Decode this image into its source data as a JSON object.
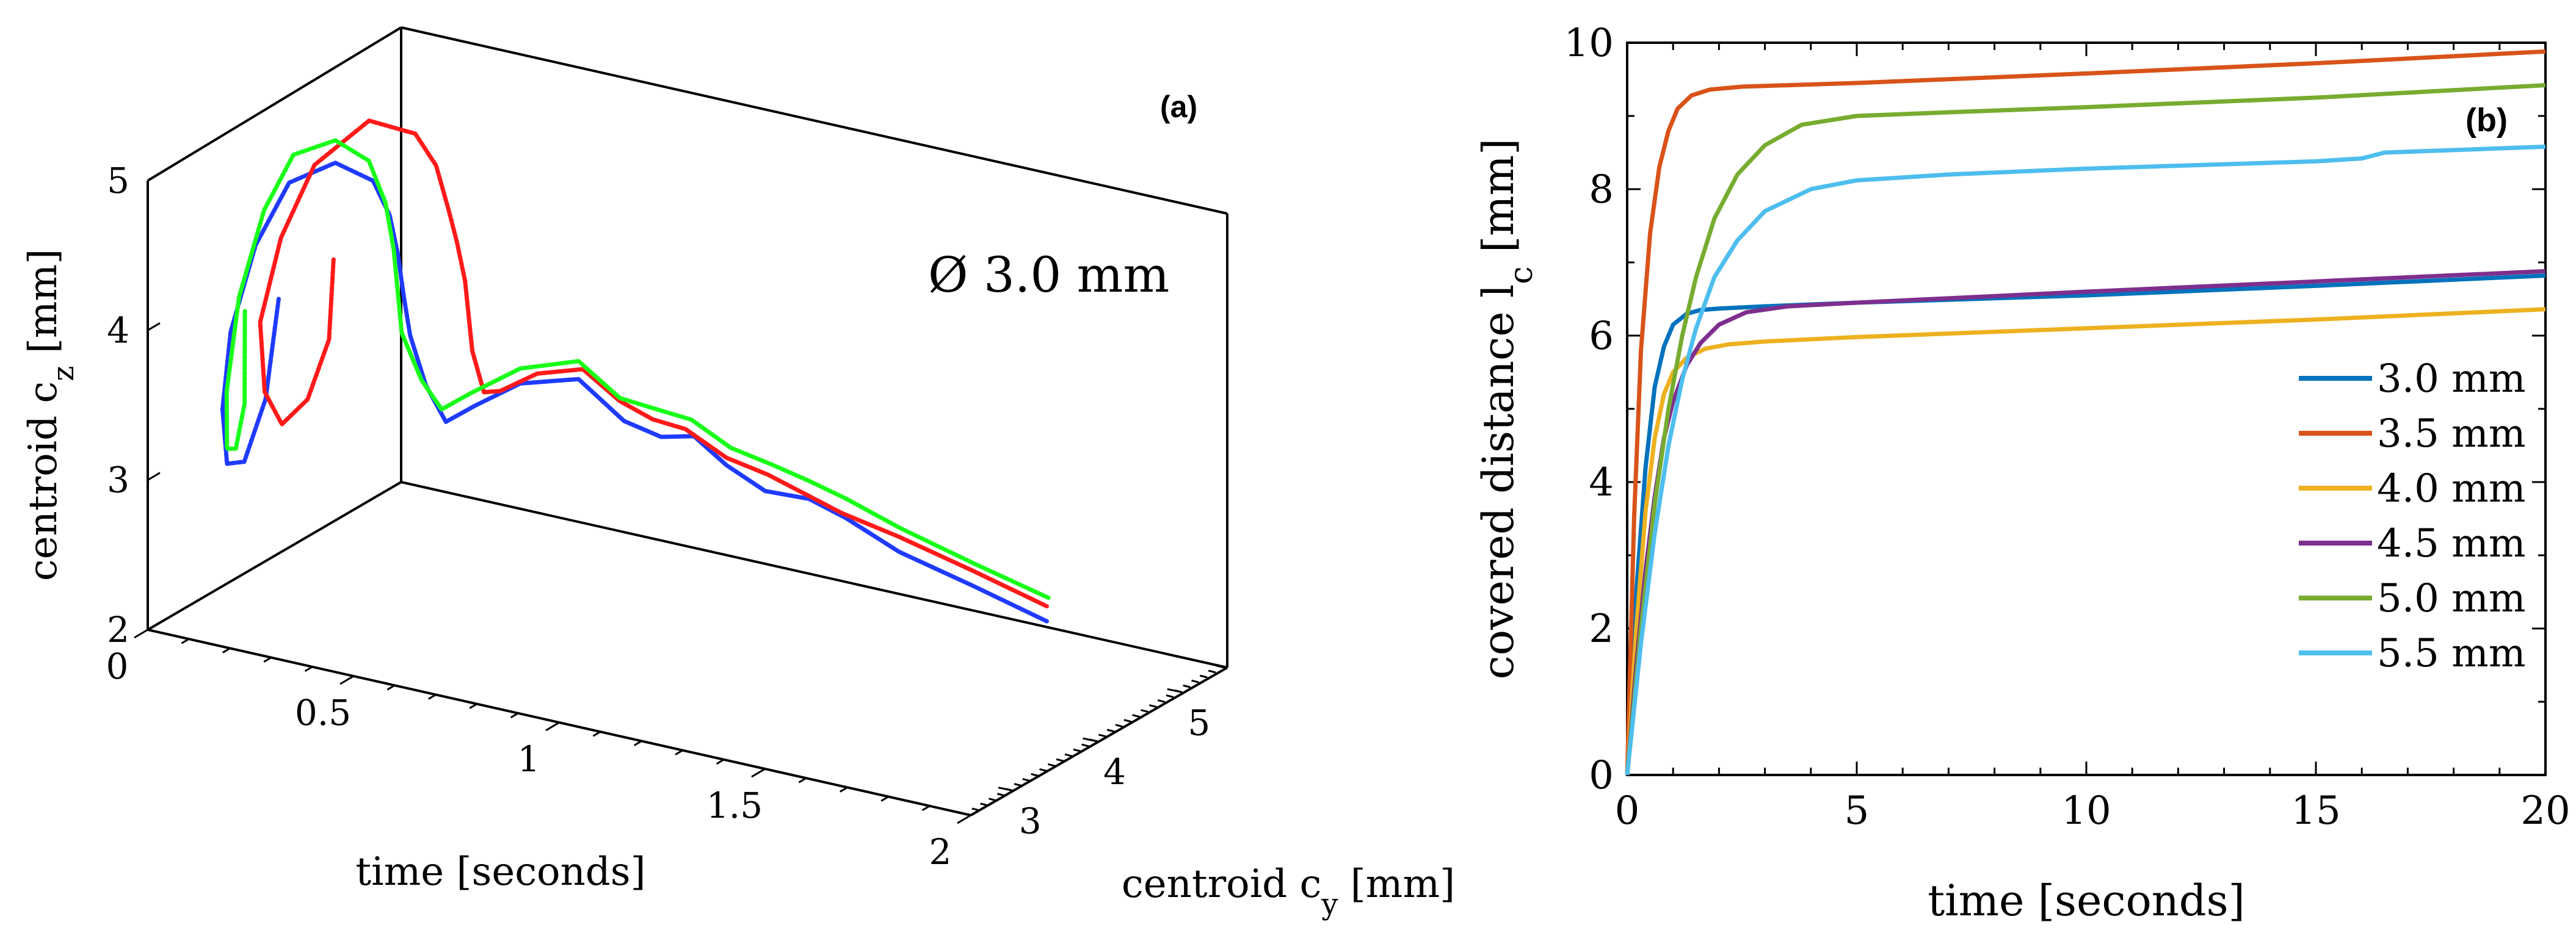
{
  "chart_data": [
    {
      "panel": "(a)",
      "type": "line",
      "annotation": "Ø 3.0 mm",
      "xlabel": "time [seconds]",
      "ylabel": "centroid c_y [mm]",
      "zlabel": "centroid c_z [mm]",
      "x_ticks": [
        "0",
        "0.5",
        "1",
        "1.5",
        "2"
      ],
      "y_ticks": [
        "3",
        "4",
        "5"
      ],
      "z_ticks": [
        "2",
        "3",
        "4",
        "5"
      ],
      "xlim": [
        0,
        2
      ],
      "ylim": [
        2.5,
        5.5
      ],
      "zlim": [
        2,
        5
      ],
      "grid": false,
      "colors": {
        "blue": "#1f3bff",
        "red": "#ff1a1a",
        "green": "#1aff1a"
      },
      "series": [
        {
          "color": "blue",
          "points": [
            [
              0.0,
              4.05,
              3.7
            ],
            [
              0.03,
              3.75,
              3.15
            ],
            [
              0.06,
              3.35,
              2.88
            ],
            [
              0.09,
              3.0,
              3.0
            ],
            [
              0.12,
              2.8,
              3.45
            ],
            [
              0.15,
              2.75,
              4.0
            ],
            [
              0.18,
              2.9,
              4.55
            ],
            [
              0.2,
              3.2,
              4.88
            ],
            [
              0.23,
              3.6,
              4.9
            ],
            [
              0.26,
              3.9,
              4.7
            ],
            [
              0.28,
              4.0,
              4.45
            ],
            [
              0.3,
              4.0,
              4.2
            ],
            [
              0.32,
              3.97,
              3.95
            ],
            [
              0.34,
              3.95,
              3.7
            ],
            [
              0.45,
              3.6,
              3.55
            ],
            [
              0.55,
              3.35,
              3.45
            ],
            [
              0.62,
              3.35,
              3.6
            ],
            [
              0.7,
              3.5,
              3.75
            ],
            [
              0.78,
              3.8,
              3.73
            ],
            [
              0.86,
              3.95,
              3.45
            ],
            [
              0.95,
              3.95,
              3.4
            ],
            [
              1.05,
              3.85,
              3.5
            ],
            [
              1.15,
              3.75,
              3.4
            ],
            [
              1.25,
              3.72,
              3.3
            ],
            [
              1.35,
              3.75,
              3.3
            ],
            [
              1.45,
              3.7,
              3.25
            ],
            [
              1.6,
              3.6,
              3.15
            ],
            [
              1.8,
              3.5,
              3.08
            ],
            [
              2.0,
              3.4,
              3.0
            ]
          ]
        },
        {
          "color": "red",
          "points": [
            [
              0.0,
              4.7,
              3.75
            ],
            [
              0.03,
              4.5,
              3.3
            ],
            [
              0.06,
              4.1,
              3.05
            ],
            [
              0.09,
              3.65,
              3.05
            ],
            [
              0.12,
              3.3,
              3.4
            ],
            [
              0.15,
              3.1,
              3.95
            ],
            [
              0.18,
              3.2,
              4.5
            ],
            [
              0.2,
              3.5,
              4.9
            ],
            [
              0.23,
              4.0,
              5.05
            ],
            [
              0.26,
              4.4,
              4.85
            ],
            [
              0.28,
              4.55,
              4.6
            ],
            [
              0.3,
              4.6,
              4.3
            ],
            [
              0.32,
              4.6,
              4.1
            ],
            [
              0.34,
              4.6,
              3.85
            ],
            [
              0.45,
              4.15,
              3.6
            ],
            [
              0.55,
              3.8,
              3.5
            ],
            [
              0.62,
              3.65,
              3.6
            ],
            [
              0.7,
              3.7,
              3.75
            ],
            [
              0.78,
              3.85,
              3.78
            ],
            [
              0.86,
              3.9,
              3.6
            ],
            [
              0.95,
              3.85,
              3.55
            ],
            [
              1.05,
              3.75,
              3.58
            ],
            [
              1.15,
              3.75,
              3.45
            ],
            [
              1.25,
              3.75,
              3.4
            ],
            [
              1.35,
              3.7,
              3.35
            ],
            [
              1.45,
              3.65,
              3.3
            ],
            [
              1.6,
              3.6,
              3.25
            ],
            [
              1.8,
              3.5,
              3.18
            ],
            [
              2.0,
              3.4,
              3.1
            ]
          ]
        },
        {
          "color": "green",
          "points": [
            [
              0.0,
              3.65,
              3.75
            ],
            [
              0.03,
              3.5,
              3.2
            ],
            [
              0.06,
              3.25,
              3.0
            ],
            [
              0.09,
              3.0,
              3.1
            ],
            [
              0.12,
              2.85,
              3.55
            ],
            [
              0.15,
              2.85,
              4.2
            ],
            [
              0.18,
              3.0,
              4.75
            ],
            [
              0.2,
              3.25,
              5.05
            ],
            [
              0.23,
              3.6,
              5.05
            ],
            [
              0.26,
              3.85,
              4.85
            ],
            [
              0.28,
              3.95,
              4.55
            ],
            [
              0.3,
              3.95,
              4.25
            ],
            [
              0.32,
              3.9,
              4.0
            ],
            [
              0.34,
              3.85,
              3.75
            ],
            [
              0.45,
              3.55,
              3.6
            ],
            [
              0.55,
              3.3,
              3.55
            ],
            [
              0.62,
              3.3,
              3.7
            ],
            [
              0.7,
              3.5,
              3.85
            ],
            [
              0.78,
              3.8,
              3.85
            ],
            [
              0.86,
              3.9,
              3.62
            ],
            [
              0.95,
              3.9,
              3.6
            ],
            [
              1.05,
              3.82,
              3.62
            ],
            [
              1.15,
              3.8,
              3.5
            ],
            [
              1.25,
              3.8,
              3.45
            ],
            [
              1.35,
              3.75,
              3.42
            ],
            [
              1.45,
              3.7,
              3.38
            ],
            [
              1.6,
              3.62,
              3.3
            ],
            [
              1.8,
              3.52,
              3.22
            ],
            [
              2.0,
              3.42,
              3.15
            ]
          ]
        }
      ]
    },
    {
      "panel": "(b)",
      "type": "line",
      "xlabel": "time [seconds]",
      "ylabel": "covered distance l_c [mm]",
      "xlim": [
        0,
        20
      ],
      "ylim": [
        0,
        10
      ],
      "x_ticks": [
        0,
        5,
        10,
        15,
        20
      ],
      "y_ticks": [
        0,
        2,
        4,
        6,
        8,
        10
      ],
      "grid": false,
      "legend_position": "bottom-right",
      "series": [
        {
          "name": "3.0 mm",
          "color": "#0072bd",
          "x": [
            0,
            0.2,
            0.4,
            0.6,
            0.8,
            1.0,
            1.3,
            1.6,
            2,
            3,
            5,
            10,
            15,
            20
          ],
          "y": [
            0,
            2.5,
            4.2,
            5.3,
            5.85,
            6.15,
            6.3,
            6.35,
            6.37,
            6.4,
            6.45,
            6.55,
            6.68,
            6.82
          ]
        },
        {
          "name": "3.5 mm",
          "color": "#d95319",
          "x": [
            0,
            0.15,
            0.3,
            0.5,
            0.7,
            0.9,
            1.1,
            1.4,
            1.8,
            2.5,
            5,
            10,
            15,
            20
          ],
          "y": [
            0,
            3.5,
            5.8,
            7.4,
            8.3,
            8.8,
            9.1,
            9.28,
            9.36,
            9.4,
            9.45,
            9.58,
            9.72,
            9.88
          ]
        },
        {
          "name": "4.0 mm",
          "color": "#edb120",
          "x": [
            0,
            0.2,
            0.4,
            0.6,
            0.8,
            1.0,
            1.3,
            1.7,
            2.2,
            3,
            5,
            10,
            15,
            20
          ],
          "y": [
            0,
            2.0,
            3.6,
            4.6,
            5.2,
            5.5,
            5.7,
            5.82,
            5.88,
            5.92,
            5.98,
            6.1,
            6.22,
            6.36
          ]
        },
        {
          "name": "4.5 mm",
          "color": "#7e2f8e",
          "x": [
            0,
            0.2,
            0.4,
            0.6,
            0.8,
            1.0,
            1.3,
            1.6,
            2,
            2.6,
            3.5,
            5,
            10,
            15,
            20
          ],
          "y": [
            0,
            1.5,
            2.8,
            3.8,
            4.6,
            5.1,
            5.6,
            5.9,
            6.15,
            6.32,
            6.4,
            6.45,
            6.6,
            6.74,
            6.88
          ]
        },
        {
          "name": "5.0 mm",
          "color": "#77ac30",
          "x": [
            0,
            0.3,
            0.6,
            0.9,
            1.2,
            1.5,
            1.9,
            2.4,
            3,
            3.8,
            5,
            7,
            10,
            15,
            20
          ],
          "y": [
            0,
            2.0,
            3.7,
            5.0,
            6.0,
            6.8,
            7.6,
            8.2,
            8.6,
            8.88,
            9.0,
            9.05,
            9.12,
            9.25,
            9.42
          ]
        },
        {
          "name": "5.5 mm",
          "color": "#4dbeee",
          "x": [
            0,
            0.3,
            0.6,
            0.9,
            1.2,
            1.5,
            1.9,
            2.4,
            3,
            4,
            5,
            7,
            10,
            15,
            16,
            16.5,
            20
          ],
          "y": [
            0,
            1.8,
            3.3,
            4.5,
            5.4,
            6.1,
            6.8,
            7.3,
            7.7,
            8.0,
            8.12,
            8.2,
            8.28,
            8.38,
            8.42,
            8.5,
            8.58
          ]
        }
      ]
    }
  ]
}
